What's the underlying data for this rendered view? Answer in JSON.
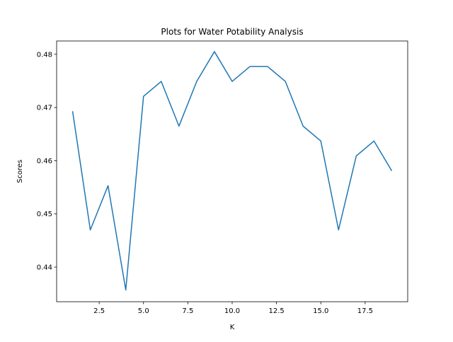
{
  "chart_data": {
    "type": "line",
    "title": "Plots for Water Potability Analysis",
    "xlabel": "K",
    "ylabel": "Scores",
    "xlim": [
      0.1,
      19.9
    ],
    "ylim": [
      0.4335,
      0.4825
    ],
    "xticks": [
      2.5,
      5.0,
      7.5,
      10.0,
      12.5,
      15.0,
      17.5
    ],
    "xtick_labels": [
      "2.5",
      "5.0",
      "7.5",
      "10.0",
      "12.5",
      "15.0",
      "17.5"
    ],
    "yticks": [
      0.44,
      0.45,
      0.46,
      0.47,
      0.48
    ],
    "ytick_labels": [
      "0.44",
      "0.45",
      "0.46",
      "0.47",
      "0.48"
    ],
    "grid": false,
    "series": [
      {
        "color": "#1f77b4",
        "x": [
          1,
          2,
          3,
          4,
          5,
          6,
          7,
          8,
          9,
          10,
          11,
          12,
          13,
          14,
          15,
          16,
          17,
          18,
          19
        ],
        "y": [
          0.4693,
          0.447,
          0.4553,
          0.4357,
          0.4721,
          0.4749,
          0.4665,
          0.4749,
          0.4805,
          0.4749,
          0.4777,
          0.4777,
          0.4749,
          0.4665,
          0.4637,
          0.447,
          0.4609,
          0.4637,
          0.4581
        ]
      }
    ]
  }
}
